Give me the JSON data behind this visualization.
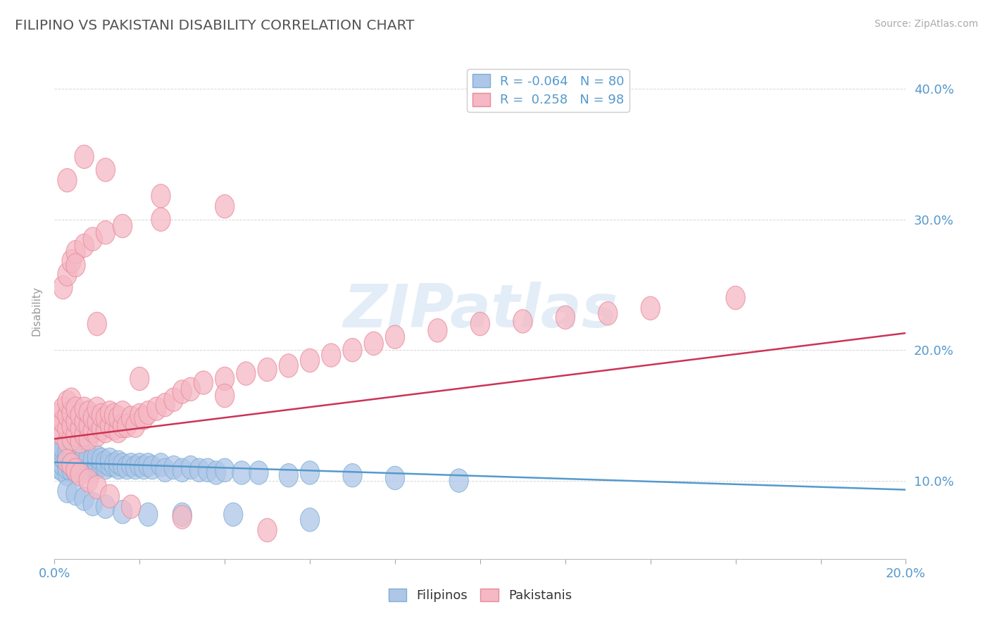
{
  "title": "FILIPINO VS PAKISTANI DISABILITY CORRELATION CHART",
  "source": "Source: ZipAtlas.com",
  "ylabel": "Disability",
  "xlim": [
    0.0,
    0.2
  ],
  "ylim": [
    0.04,
    0.42
  ],
  "xticks": [
    0.0,
    0.02,
    0.04,
    0.06,
    0.08,
    0.1,
    0.12,
    0.14,
    0.16,
    0.18,
    0.2
  ],
  "xtick_labels": [
    "0.0%",
    "",
    "",
    "",
    "",
    "",
    "",
    "",
    "",
    "",
    "20.0%"
  ],
  "yticks": [
    0.1,
    0.2,
    0.3,
    0.4
  ],
  "blue_R": -0.064,
  "blue_N": 80,
  "pink_R": 0.258,
  "pink_N": 98,
  "blue_marker_face": "#aec6e8",
  "blue_marker_edge": "#7bafd4",
  "pink_marker_face": "#f5b8c4",
  "pink_marker_edge": "#e8899a",
  "blue_line_color": "#5599cc",
  "pink_line_color": "#cc3355",
  "background_color": "#ffffff",
  "grid_color": "#cccccc",
  "title_color": "#555555",
  "axis_tick_color": "#5599cc",
  "watermark_color": "#c8ddf0",
  "blue_trend_x": [
    0.0,
    0.2
  ],
  "blue_trend_y": [
    0.114,
    0.093
  ],
  "pink_trend_x": [
    0.0,
    0.2
  ],
  "pink_trend_y": [
    0.132,
    0.213
  ],
  "blue_x": [
    0.001,
    0.001,
    0.001,
    0.002,
    0.002,
    0.002,
    0.002,
    0.002,
    0.003,
    0.003,
    0.003,
    0.003,
    0.003,
    0.004,
    0.004,
    0.004,
    0.004,
    0.005,
    0.005,
    0.005,
    0.005,
    0.005,
    0.006,
    0.006,
    0.006,
    0.006,
    0.007,
    0.007,
    0.007,
    0.008,
    0.008,
    0.008,
    0.009,
    0.009,
    0.01,
    0.01,
    0.01,
    0.011,
    0.011,
    0.012,
    0.012,
    0.013,
    0.013,
    0.014,
    0.015,
    0.015,
    0.016,
    0.017,
    0.018,
    0.019,
    0.02,
    0.021,
    0.022,
    0.023,
    0.025,
    0.026,
    0.028,
    0.03,
    0.032,
    0.034,
    0.036,
    0.038,
    0.04,
    0.044,
    0.048,
    0.055,
    0.06,
    0.07,
    0.08,
    0.095,
    0.003,
    0.005,
    0.007,
    0.009,
    0.012,
    0.016,
    0.022,
    0.03,
    0.042,
    0.06
  ],
  "blue_y": [
    0.11,
    0.115,
    0.12,
    0.108,
    0.112,
    0.118,
    0.122,
    0.125,
    0.105,
    0.11,
    0.115,
    0.118,
    0.122,
    0.108,
    0.112,
    0.116,
    0.12,
    0.107,
    0.111,
    0.114,
    0.118,
    0.122,
    0.108,
    0.112,
    0.116,
    0.12,
    0.11,
    0.114,
    0.118,
    0.11,
    0.114,
    0.118,
    0.112,
    0.116,
    0.11,
    0.114,
    0.118,
    0.112,
    0.116,
    0.11,
    0.114,
    0.112,
    0.116,
    0.112,
    0.11,
    0.114,
    0.112,
    0.11,
    0.112,
    0.11,
    0.112,
    0.11,
    0.112,
    0.11,
    0.112,
    0.108,
    0.11,
    0.108,
    0.11,
    0.108,
    0.108,
    0.106,
    0.108,
    0.106,
    0.106,
    0.104,
    0.106,
    0.104,
    0.102,
    0.1,
    0.092,
    0.09,
    0.086,
    0.082,
    0.08,
    0.076,
    0.074,
    0.074,
    0.074,
    0.07
  ],
  "pink_x": [
    0.001,
    0.001,
    0.002,
    0.002,
    0.002,
    0.003,
    0.003,
    0.003,
    0.003,
    0.004,
    0.004,
    0.004,
    0.004,
    0.005,
    0.005,
    0.005,
    0.006,
    0.006,
    0.006,
    0.007,
    0.007,
    0.007,
    0.008,
    0.008,
    0.008,
    0.009,
    0.009,
    0.01,
    0.01,
    0.01,
    0.011,
    0.011,
    0.012,
    0.012,
    0.013,
    0.013,
    0.014,
    0.014,
    0.015,
    0.015,
    0.016,
    0.016,
    0.017,
    0.018,
    0.019,
    0.02,
    0.021,
    0.022,
    0.024,
    0.026,
    0.028,
    0.03,
    0.032,
    0.035,
    0.04,
    0.045,
    0.05,
    0.055,
    0.06,
    0.065,
    0.07,
    0.075,
    0.08,
    0.09,
    0.1,
    0.11,
    0.12,
    0.13,
    0.14,
    0.16,
    0.003,
    0.004,
    0.005,
    0.006,
    0.008,
    0.01,
    0.013,
    0.018,
    0.03,
    0.05,
    0.002,
    0.003,
    0.004,
    0.005,
    0.007,
    0.009,
    0.012,
    0.016,
    0.025,
    0.04,
    0.003,
    0.005,
    0.01,
    0.02,
    0.04,
    0.007,
    0.012,
    0.025
  ],
  "pink_y": [
    0.14,
    0.15,
    0.135,
    0.145,
    0.155,
    0.13,
    0.14,
    0.15,
    0.16,
    0.132,
    0.142,
    0.152,
    0.162,
    0.135,
    0.145,
    0.155,
    0.13,
    0.14,
    0.15,
    0.135,
    0.145,
    0.155,
    0.132,
    0.142,
    0.152,
    0.138,
    0.148,
    0.135,
    0.145,
    0.155,
    0.14,
    0.15,
    0.138,
    0.148,
    0.142,
    0.152,
    0.14,
    0.15,
    0.138,
    0.148,
    0.142,
    0.152,
    0.142,
    0.148,
    0.142,
    0.15,
    0.148,
    0.152,
    0.155,
    0.158,
    0.162,
    0.168,
    0.17,
    0.175,
    0.178,
    0.182,
    0.185,
    0.188,
    0.192,
    0.196,
    0.2,
    0.205,
    0.21,
    0.215,
    0.22,
    0.222,
    0.225,
    0.228,
    0.232,
    0.24,
    0.115,
    0.112,
    0.108,
    0.105,
    0.1,
    0.095,
    0.088,
    0.08,
    0.072,
    0.062,
    0.248,
    0.258,
    0.268,
    0.275,
    0.28,
    0.285,
    0.29,
    0.295,
    0.3,
    0.31,
    0.33,
    0.265,
    0.22,
    0.178,
    0.165,
    0.348,
    0.338,
    0.318
  ]
}
